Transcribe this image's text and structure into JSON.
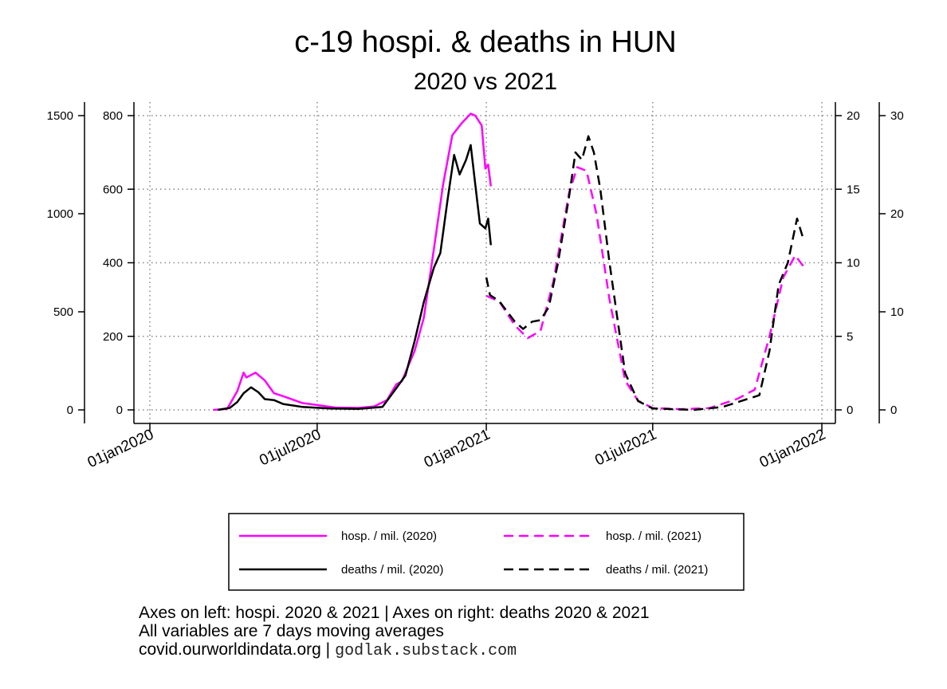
{
  "chart_data": {
    "type": "line",
    "title": "c-19 hospi. & deaths in HUN",
    "subtitle": "2020 vs 2021",
    "x_ticks": [
      "01jan2020",
      "01jul2020",
      "01jan2021",
      "01jul2021",
      "01jan2022"
    ],
    "axes": {
      "hosp_2020_left_outer": {
        "ticks": [
          0,
          500,
          1000,
          1500
        ],
        "range": [
          0,
          1500
        ]
      },
      "hosp_2021_left_inner": {
        "ticks": [
          0,
          200,
          400,
          600,
          800
        ],
        "range": [
          0,
          800
        ]
      },
      "deaths_2021_right_inner": {
        "ticks": [
          0,
          5,
          10,
          15,
          20
        ],
        "range": [
          0,
          20
        ]
      },
      "deaths_2020_right_outer": {
        "ticks": [
          0,
          10,
          20,
          30
        ],
        "range": [
          0,
          30
        ]
      }
    },
    "grid": true,
    "legend_position": "bottom",
    "series": [
      {
        "name": "hosp. / mil. (2020)",
        "color": "#ff00ff",
        "dash": "solid",
        "axis": "hosp_2020_left_outer",
        "points": [
          [
            "2020-03-10",
            0
          ],
          [
            "2020-03-25",
            5
          ],
          [
            "2020-04-05",
            95
          ],
          [
            "2020-04-12",
            190
          ],
          [
            "2020-04-15",
            165
          ],
          [
            "2020-04-25",
            190
          ],
          [
            "2020-05-05",
            150
          ],
          [
            "2020-05-15",
            85
          ],
          [
            "2020-05-25",
            70
          ],
          [
            "2020-06-15",
            35
          ],
          [
            "2020-07-01",
            25
          ],
          [
            "2020-07-20",
            12
          ],
          [
            "2020-08-15",
            10
          ],
          [
            "2020-09-01",
            18
          ],
          [
            "2020-09-15",
            50
          ],
          [
            "2020-09-25",
            130
          ],
          [
            "2020-10-01",
            145
          ],
          [
            "2020-10-15",
            300
          ],
          [
            "2020-10-25",
            470
          ],
          [
            "2020-11-05",
            820
          ],
          [
            "2020-11-15",
            1150
          ],
          [
            "2020-11-25",
            1400
          ],
          [
            "2020-12-05",
            1460
          ],
          [
            "2020-12-15",
            1510
          ],
          [
            "2020-12-20",
            1500
          ],
          [
            "2020-12-27",
            1450
          ],
          [
            "2020-12-31",
            1230
          ],
          [
            "2021-01-03",
            1250
          ],
          [
            "2021-01-06",
            1140
          ]
        ]
      },
      {
        "name": "deaths / mil. (2020)",
        "color": "#000000",
        "dash": "solid",
        "axis": "deaths_2020_right_outer",
        "points": [
          [
            "2020-03-15",
            0
          ],
          [
            "2020-03-28",
            0.2
          ],
          [
            "2020-04-05",
            0.8
          ],
          [
            "2020-04-12",
            1.7
          ],
          [
            "2020-04-20",
            2.3
          ],
          [
            "2020-04-28",
            1.8
          ],
          [
            "2020-05-05",
            1.1
          ],
          [
            "2020-05-15",
            1.0
          ],
          [
            "2020-05-25",
            0.6
          ],
          [
            "2020-06-15",
            0.3
          ],
          [
            "2020-07-15",
            0.15
          ],
          [
            "2020-08-15",
            0.1
          ],
          [
            "2020-09-10",
            0.3
          ],
          [
            "2020-09-25",
            2.2
          ],
          [
            "2020-10-05",
            3.5
          ],
          [
            "2020-10-15",
            7.0
          ],
          [
            "2020-10-25",
            11.0
          ],
          [
            "2020-11-05",
            14.5
          ],
          [
            "2020-11-12",
            16.0
          ],
          [
            "2020-11-20",
            21.5
          ],
          [
            "2020-11-27",
            26.0
          ],
          [
            "2020-12-03",
            24.0
          ],
          [
            "2020-12-10",
            25.5
          ],
          [
            "2020-12-15",
            27.0
          ],
          [
            "2020-12-20",
            23.0
          ],
          [
            "2020-12-25",
            19.0
          ],
          [
            "2020-12-31",
            18.5
          ],
          [
            "2021-01-03",
            19.5
          ],
          [
            "2021-01-06",
            16.8
          ]
        ]
      },
      {
        "name": "hosp. / mil. (2021)",
        "color": "#ff00ff",
        "dash": "dashed",
        "axis": "hosp_2021_left_inner",
        "points": [
          [
            "2021-01-01",
            310
          ],
          [
            "2021-01-15",
            295
          ],
          [
            "2021-02-01",
            230
          ],
          [
            "2021-02-15",
            195
          ],
          [
            "2021-03-01",
            215
          ],
          [
            "2021-03-15",
            350
          ],
          [
            "2021-04-01",
            590
          ],
          [
            "2021-04-10",
            660
          ],
          [
            "2021-04-20",
            650
          ],
          [
            "2021-05-01",
            530
          ],
          [
            "2021-05-15",
            300
          ],
          [
            "2021-06-01",
            80
          ],
          [
            "2021-06-15",
            25
          ],
          [
            "2021-07-01",
            5
          ],
          [
            "2021-08-01",
            2
          ],
          [
            "2021-09-01",
            5
          ],
          [
            "2021-10-01",
            30
          ],
          [
            "2021-10-20",
            55
          ],
          [
            "2021-11-05",
            200
          ],
          [
            "2021-11-20",
            360
          ],
          [
            "2021-12-03",
            420
          ],
          [
            "2021-12-12",
            390
          ]
        ]
      },
      {
        "name": "deaths / mil. (2021)",
        "color": "#000000",
        "dash": "dashed",
        "axis": "deaths_2021_right_inner",
        "points": [
          [
            "2021-01-01",
            9.0
          ],
          [
            "2021-01-05",
            7.8
          ],
          [
            "2021-01-15",
            7.4
          ],
          [
            "2021-02-01",
            6.0
          ],
          [
            "2021-02-10",
            5.5
          ],
          [
            "2021-02-20",
            6.0
          ],
          [
            "2021-03-01",
            6.1
          ],
          [
            "2021-03-10",
            7.0
          ],
          [
            "2021-03-20",
            10.0
          ],
          [
            "2021-04-01",
            14.5
          ],
          [
            "2021-04-08",
            17.5
          ],
          [
            "2021-04-15",
            17.0
          ],
          [
            "2021-04-22",
            18.6
          ],
          [
            "2021-04-28",
            17.5
          ],
          [
            "2021-05-05",
            15.0
          ],
          [
            "2021-05-15",
            10.0
          ],
          [
            "2021-06-01",
            2.5
          ],
          [
            "2021-06-15",
            0.6
          ],
          [
            "2021-07-01",
            0.1
          ],
          [
            "2021-08-15",
            0.0
          ],
          [
            "2021-09-15",
            0.2
          ],
          [
            "2021-10-10",
            0.7
          ],
          [
            "2021-10-25",
            1.0
          ],
          [
            "2021-11-05",
            4.0
          ],
          [
            "2021-11-15",
            8.5
          ],
          [
            "2021-11-25",
            10.0
          ],
          [
            "2021-12-05",
            13.0
          ],
          [
            "2021-12-12",
            11.6
          ]
        ]
      }
    ]
  },
  "notes": {
    "line1": "Axes on left: hospi. 2020 & 2021 | Axes on right: deaths 2020 & 2021",
    "line2": "All variables are 7 days moving averages",
    "line3": "covid.ourworldindata.org |",
    "source_mono": "godlak.substack.com"
  }
}
